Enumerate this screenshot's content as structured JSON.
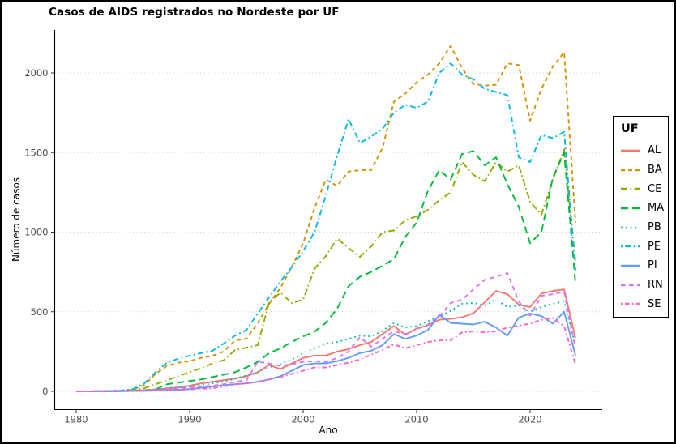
{
  "window": {
    "background": "#ffffff",
    "border_color": "#000000"
  },
  "chart_data": {
    "type": "line",
    "title": "Casos de AIDS registrados no Nordeste por UF",
    "xlabel": "Ano",
    "ylabel": "Número de casos",
    "legend_title": "UF",
    "legend_position": "right",
    "grid": "horizontal-dotted",
    "xlim": [
      1978,
      2026.3
    ],
    "ylim": [
      -60,
      2280
    ],
    "xticks": [
      1980,
      1990,
      2000,
      2010,
      2020
    ],
    "yticks": [
      0,
      500,
      1000,
      1500,
      2000
    ],
    "x": [
      1980,
      1981,
      1982,
      1983,
      1984,
      1985,
      1986,
      1987,
      1988,
      1989,
      1990,
      1991,
      1992,
      1993,
      1994,
      1995,
      1996,
      1997,
      1998,
      1999,
      2000,
      2001,
      2002,
      2003,
      2004,
      2005,
      2006,
      2007,
      2008,
      2009,
      2010,
      2011,
      2012,
      2013,
      2014,
      2015,
      2016,
      2017,
      2018,
      2019,
      2020,
      2021,
      2022,
      2023,
      2024
    ],
    "series": [
      {
        "name": "AL",
        "color": "#F8766D",
        "linetype": "solid",
        "dash": "",
        "values": [
          0,
          0,
          0,
          2,
          3,
          5,
          8,
          12,
          18,
          25,
          35,
          50,
          60,
          70,
          80,
          95,
          120,
          165,
          140,
          175,
          210,
          225,
          225,
          250,
          265,
          290,
          310,
          360,
          410,
          355,
          395,
          415,
          450,
          455,
          465,
          490,
          560,
          630,
          610,
          545,
          530,
          615,
          630,
          640,
          335
        ]
      },
      {
        "name": "BA",
        "color": "#D39200",
        "linetype": "dashed",
        "dash": "5 4",
        "values": [
          0,
          0,
          2,
          3,
          5,
          10,
          40,
          110,
          160,
          180,
          190,
          210,
          224,
          250,
          320,
          330,
          430,
          550,
          650,
          780,
          930,
          1150,
          1330,
          1290,
          1380,
          1390,
          1390,
          1530,
          1820,
          1870,
          1940,
          1990,
          2060,
          2170,
          2030,
          1930,
          1920,
          1925,
          2060,
          2050,
          1700,
          1900,
          2040,
          2130,
          1060
        ]
      },
      {
        "name": "CE",
        "color": "#93AA00",
        "linetype": "dashdot",
        "dash": "8 3.5 1.6 3.5",
        "values": [
          0,
          0,
          1,
          2,
          3,
          5,
          20,
          45,
          70,
          95,
          120,
          145,
          175,
          195,
          260,
          275,
          290,
          560,
          620,
          555,
          575,
          770,
          850,
          960,
          900,
          845,
          910,
          1000,
          1010,
          1075,
          1100,
          1140,
          1200,
          1250,
          1440,
          1360,
          1320,
          1440,
          1380,
          1420,
          1190,
          1110,
          1330,
          1520,
          810
        ]
      },
      {
        "name": "MA",
        "color": "#00BA38",
        "linetype": "longdash",
        "dash": "9 5",
        "values": [
          0,
          0,
          0,
          1,
          2,
          3,
          5,
          12,
          45,
          55,
          65,
          75,
          90,
          105,
          120,
          150,
          185,
          240,
          270,
          310,
          345,
          375,
          430,
          520,
          660,
          720,
          750,
          790,
          830,
          970,
          1060,
          1260,
          1390,
          1330,
          1490,
          1510,
          1420,
          1470,
          1300,
          1160,
          930,
          1000,
          1340,
          1500,
          680
        ]
      },
      {
        "name": "PB",
        "color": "#00C19F",
        "linetype": "dotted",
        "dash": "1.8 4",
        "values": [
          0,
          0,
          0,
          1,
          2,
          3,
          5,
          10,
          20,
          25,
          30,
          40,
          50,
          60,
          80,
          100,
          120,
          150,
          170,
          200,
          240,
          270,
          300,
          310,
          330,
          350,
          345,
          380,
          430,
          400,
          410,
          440,
          470,
          505,
          550,
          555,
          540,
          575,
          530,
          540,
          500,
          530,
          550,
          565,
          290
        ]
      },
      {
        "name": "PE",
        "color": "#00B9E3",
        "linetype": "dotdash",
        "dash": "1.8 3.5 7 3.5",
        "values": [
          0,
          0,
          2,
          3,
          5,
          15,
          50,
          120,
          180,
          205,
          224,
          240,
          255,
          300,
          350,
          385,
          490,
          590,
          690,
          780,
          880,
          1000,
          1230,
          1480,
          1710,
          1560,
          1600,
          1650,
          1750,
          1800,
          1780,
          1820,
          2000,
          2060,
          1990,
          1960,
          1900,
          1880,
          1860,
          1470,
          1440,
          1610,
          1590,
          1630,
          755
        ]
      },
      {
        "name": "PI",
        "color": "#619CFF",
        "linetype": "solid",
        "dash": "",
        "values": [
          0,
          0,
          0,
          0,
          1,
          2,
          3,
          5,
          8,
          10,
          15,
          22,
          30,
          38,
          45,
          50,
          60,
          75,
          95,
          130,
          165,
          175,
          175,
          190,
          210,
          240,
          255,
          290,
          360,
          330,
          350,
          385,
          480,
          430,
          425,
          420,
          437,
          400,
          350,
          463,
          489,
          473,
          425,
          500,
          225
        ]
      },
      {
        "name": "RN",
        "color": "#DB72FB",
        "linetype": "dashed",
        "dash": "5.5 4.5",
        "values": [
          0,
          0,
          0,
          1,
          2,
          3,
          5,
          10,
          15,
          20,
          25,
          30,
          35,
          45,
          60,
          70,
          185,
          175,
          160,
          170,
          185,
          190,
          185,
          210,
          250,
          340,
          280,
          330,
          377,
          360,
          390,
          420,
          470,
          555,
          575,
          640,
          700,
          720,
          743,
          565,
          475,
          600,
          610,
          626,
          270
        ]
      },
      {
        "name": "SE",
        "color": "#FF61C3",
        "linetype": "dotdash",
        "dash": "1.8 3.2 5.5 3.2",
        "values": [
          0,
          0,
          0,
          0,
          1,
          2,
          3,
          5,
          8,
          10,
          12,
          16,
          20,
          30,
          45,
          50,
          60,
          75,
          90,
          110,
          130,
          150,
          150,
          165,
          180,
          200,
          230,
          260,
          295,
          270,
          290,
          310,
          320,
          320,
          370,
          377,
          371,
          377,
          400,
          412,
          425,
          450,
          460,
          410,
          170
        ]
      }
    ]
  }
}
